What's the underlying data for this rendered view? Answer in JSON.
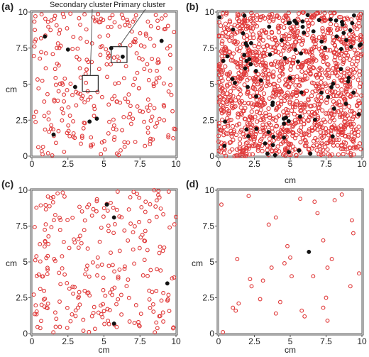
{
  "figure": {
    "marker_colors": {
      "open": "#e03a3a",
      "filled": "#111111",
      "frame": "#555555",
      "box": "#222222"
    }
  },
  "chart_data": [
    {
      "panel": "(a)",
      "type": "scatter",
      "xlabel": "",
      "ylabel": "cm",
      "xlim": [
        0,
        10
      ],
      "ylim": [
        0,
        10
      ],
      "xticks": [
        "0",
        "2.5",
        "5",
        "7.5",
        "10"
      ],
      "yticks": [
        "0",
        "2.5",
        "5",
        "7.5",
        "10"
      ],
      "grid": false,
      "annotations": [
        {
          "text": "Secondary cluster",
          "box_x": [
            3.5,
            4.6
          ],
          "box_y": [
            4.5,
            5.6
          ]
        },
        {
          "text": "Primary cluster",
          "box_x": [
            5.5,
            6.6
          ],
          "box_y": [
            6.5,
            7.6
          ]
        }
      ],
      "open_count": 300,
      "filled_points": [
        [
          0.9,
          8.3
        ],
        [
          1.5,
          1.5
        ],
        [
          2.5,
          7.4
        ],
        [
          3.0,
          4.8
        ],
        [
          4.0,
          2.4
        ],
        [
          4.5,
          2.6
        ],
        [
          5.5,
          7.5
        ],
        [
          6.3,
          6.9
        ],
        [
          9.0,
          8.0
        ]
      ]
    },
    {
      "panel": "(b)",
      "type": "scatter",
      "xlabel": "cm",
      "ylabel": "",
      "xlim": [
        0,
        10
      ],
      "ylim": [
        0,
        10
      ],
      "xticks": [
        "0",
        "2.5",
        "5",
        "7.5",
        "10"
      ],
      "yticks": [
        "0",
        "2.5",
        "5",
        "7.5",
        "10"
      ],
      "grid": false,
      "open_count": 1400,
      "filled_count": 90
    },
    {
      "panel": "(c)",
      "type": "scatter",
      "xlabel": "cm",
      "ylabel": "cm",
      "xlim": [
        0,
        10
      ],
      "ylim": [
        0,
        10
      ],
      "xticks": [
        "0",
        "2.5",
        "5",
        "7.5",
        "10"
      ],
      "yticks": [
        "0",
        "2.5",
        "5",
        "7.5",
        "10"
      ],
      "grid": false,
      "open_count": 260,
      "filled_points": [
        [
          5.2,
          9.0
        ],
        [
          5.7,
          8.1
        ],
        [
          9.4,
          3.5
        ],
        [
          5.7,
          0.7
        ]
      ]
    },
    {
      "panel": "(d)",
      "type": "scatter",
      "xlabel": "cm",
      "ylabel": "cm",
      "xlim": [
        0,
        10
      ],
      "ylim": [
        0,
        10
      ],
      "xticks": [
        "0",
        "2.5",
        "5",
        "7.5",
        "10"
      ],
      "yticks": [
        "0",
        "2.5",
        "5",
        "7.5",
        "10"
      ],
      "grid": false,
      "open_points": [
        [
          0.2,
          9.0
        ],
        [
          0.3,
          0.1
        ],
        [
          1.0,
          1.8
        ],
        [
          1.2,
          1.6
        ],
        [
          1.4,
          2.1
        ],
        [
          1.3,
          5.2
        ],
        [
          2.1,
          9.6
        ],
        [
          2.2,
          3.8
        ],
        [
          2.3,
          3.3
        ],
        [
          2.9,
          2.4
        ],
        [
          3.1,
          3.7
        ],
        [
          3.5,
          7.6
        ],
        [
          3.7,
          4.6
        ],
        [
          4.0,
          8.1
        ],
        [
          4.0,
          1.4
        ],
        [
          4.3,
          2.2
        ],
        [
          4.6,
          4.9
        ],
        [
          4.8,
          6.1
        ],
        [
          5.0,
          5.3
        ],
        [
          5.1,
          4.0
        ],
        [
          5.7,
          9.4
        ],
        [
          5.8,
          1.6
        ],
        [
          6.0,
          1.2
        ],
        [
          6.6,
          4.0
        ],
        [
          6.7,
          9.2
        ],
        [
          6.9,
          8.4
        ],
        [
          7.3,
          6.5
        ],
        [
          7.3,
          1.8
        ],
        [
          7.5,
          2.5
        ],
        [
          7.6,
          4.6
        ],
        [
          7.6,
          0.9
        ],
        [
          7.9,
          5.2
        ],
        [
          8.1,
          9.3
        ],
        [
          8.6,
          9.7
        ],
        [
          9.2,
          3.3
        ],
        [
          9.3,
          7.9
        ],
        [
          9.4,
          7.0
        ],
        [
          9.8,
          4.2
        ]
      ],
      "filled_points": [
        [
          6.3,
          5.7
        ]
      ]
    }
  ]
}
